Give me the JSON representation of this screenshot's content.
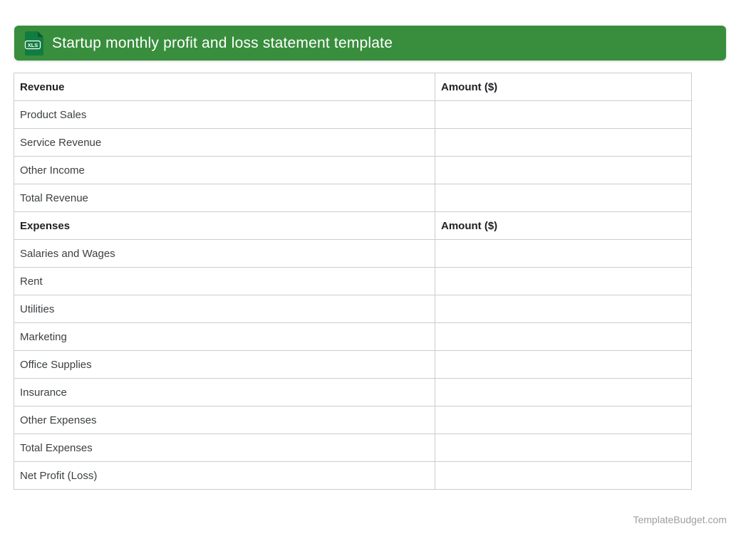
{
  "header": {
    "title": "Startup monthly profit and loss statement template",
    "icon": {
      "name": "xls-file-icon",
      "label": "XLS",
      "doc_color": "#107C41",
      "fold_color": "#0A5C30"
    },
    "bar_color": "#388E3C"
  },
  "table": {
    "sections": [
      {
        "header": {
          "label": "Revenue",
          "amount_header": "Amount ($)"
        },
        "rows": [
          {
            "label": "Product Sales",
            "amount": ""
          },
          {
            "label": "Service Revenue",
            "amount": ""
          },
          {
            "label": "Other Income",
            "amount": ""
          },
          {
            "label": "Total Revenue",
            "amount": ""
          }
        ]
      },
      {
        "header": {
          "label": "Expenses",
          "amount_header": "Amount ($)"
        },
        "rows": [
          {
            "label": "Salaries and Wages",
            "amount": ""
          },
          {
            "label": "Rent",
            "amount": ""
          },
          {
            "label": "Utilities",
            "amount": ""
          },
          {
            "label": "Marketing",
            "amount": ""
          },
          {
            "label": "Office Supplies",
            "amount": ""
          },
          {
            "label": "Insurance",
            "amount": ""
          },
          {
            "label": "Other Expenses",
            "amount": ""
          },
          {
            "label": "Total Expenses",
            "amount": ""
          },
          {
            "label": "Net Profit (Loss)",
            "amount": ""
          }
        ]
      }
    ]
  },
  "footer": {
    "site": "TemplateBudget.com"
  }
}
